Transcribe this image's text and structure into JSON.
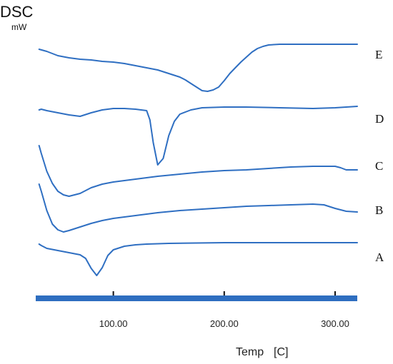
{
  "chart_data": {
    "type": "line",
    "ylabel": "DSC",
    "yunit": "mW",
    "xlabel": "Temp",
    "xunit": "[C]",
    "xlim": [
      30,
      320
    ],
    "xticks": [
      100.0,
      200.0,
      300.0
    ],
    "xtick_labels": [
      "100.00",
      "200.00",
      "300.00"
    ],
    "line_color": "#2f6fc2",
    "axis_bar_color": "#2e6ec0",
    "y_values": "relative signal (no y scale printed)",
    "series": [
      {
        "name": "E",
        "label_y": 82,
        "x": [
          33,
          40,
          50,
          60,
          70,
          80,
          90,
          100,
          110,
          120,
          130,
          140,
          150,
          160,
          165,
          170,
          175,
          180,
          185,
          190,
          195,
          200,
          205,
          210,
          215,
          220,
          225,
          230,
          235,
          240,
          250,
          260,
          280,
          300,
          320
        ],
        "y": [
          69,
          72,
          78,
          81,
          83,
          84,
          86,
          87,
          89,
          92,
          95,
          98,
          103,
          108,
          112,
          117,
          122,
          127,
          128,
          126,
          122,
          113,
          103,
          95,
          87,
          80,
          73,
          68,
          65,
          63,
          62,
          62,
          62,
          62,
          62
        ]
      },
      {
        "name": "D",
        "label_y": 172,
        "x": [
          33,
          35,
          40,
          50,
          60,
          70,
          80,
          90,
          100,
          110,
          120,
          125,
          130,
          133,
          136,
          140,
          145,
          150,
          155,
          160,
          170,
          180,
          200,
          220,
          250,
          280,
          300,
          320
        ],
        "y": [
          154,
          153,
          155,
          158,
          161,
          163,
          158,
          154,
          152,
          152,
          153,
          154,
          155,
          168,
          200,
          231,
          222,
          190,
          170,
          160,
          154,
          151,
          150,
          150,
          151,
          152,
          151,
          149
        ]
      },
      {
        "name": "C",
        "label_y": 238,
        "x": [
          33,
          35,
          40,
          45,
          50,
          55,
          60,
          70,
          80,
          90,
          100,
          120,
          140,
          160,
          180,
          200,
          220,
          240,
          260,
          280,
          300,
          305,
          310,
          320
        ],
        "y": [
          204,
          215,
          240,
          257,
          268,
          273,
          275,
          271,
          263,
          258,
          255,
          251,
          247,
          244,
          241,
          239,
          238,
          236,
          234,
          233,
          233,
          235,
          238,
          238
        ]
      },
      {
        "name": "B",
        "label_y": 300,
        "x": [
          33,
          35,
          40,
          45,
          50,
          55,
          60,
          70,
          80,
          90,
          100,
          120,
          140,
          160,
          180,
          200,
          220,
          240,
          260,
          280,
          290,
          300,
          310,
          320
        ],
        "y": [
          258,
          268,
          295,
          314,
          322,
          325,
          323,
          318,
          313,
          309,
          306,
          302,
          298,
          295,
          293,
          291,
          289,
          288,
          287,
          286,
          287,
          292,
          296,
          297
        ]
      },
      {
        "name": "A",
        "label_y": 366,
        "x": [
          33,
          35,
          40,
          50,
          60,
          70,
          75,
          80,
          85,
          90,
          95,
          100,
          110,
          120,
          130,
          150,
          200,
          250,
          300,
          320
        ],
        "y": [
          342,
          344,
          348,
          351,
          354,
          357,
          362,
          376,
          386,
          375,
          358,
          350,
          345,
          343,
          342,
          341,
          340,
          340,
          340,
          340
        ]
      }
    ]
  }
}
